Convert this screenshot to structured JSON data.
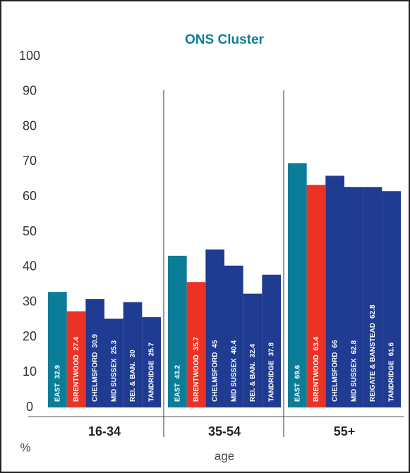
{
  "chart_data": {
    "type": "bar",
    "title": "ONS Cluster",
    "x_label": "age",
    "y_label": "%",
    "categories": [
      "16-34",
      "35-54",
      "55+"
    ],
    "series": [
      {
        "name": "EAST",
        "color": "#0b7d98",
        "labels": [
          "EAST",
          "EAST",
          "EAST"
        ],
        "values": [
          32.9,
          43.2,
          69.6
        ]
      },
      {
        "name": "BRENTWOOD",
        "color": "#ec3224",
        "labels": [
          "BRENTWOOD",
          "BRENTWOOD",
          "BRENTWOOD"
        ],
        "values": [
          27.4,
          35.7,
          63.4
        ]
      },
      {
        "name": "CHELMSFORD",
        "color": "#1f3b92",
        "labels": [
          "CHELMSFORD",
          "CHELMSFORD",
          "CHELMSFORD"
        ],
        "values": [
          30.9,
          45.0,
          66.0
        ]
      },
      {
        "name": "MID SUSSEX",
        "color": "#1f3b92",
        "labels": [
          "MID SUSSEX",
          "MID SUSSEX",
          "MID SUSSEX"
        ],
        "values": [
          25.3,
          40.4,
          62.8
        ]
      },
      {
        "name": "REI. & BAN.",
        "color": "#1f3b92",
        "labels": [
          "REI. & BAN.",
          "REI. & BAN.",
          "REIGATE & BANSTEAD"
        ],
        "values": [
          30.0,
          32.4,
          62.8
        ]
      },
      {
        "name": "TANDRIDGE",
        "color": "#1f3b92",
        "labels": [
          "TANDRIDGE",
          "TANDRIDGE",
          "TANDRIDGE"
        ],
        "values": [
          25.7,
          37.8,
          61.6
        ]
      }
    ],
    "ylim": [
      0,
      100
    ],
    "yticks": [
      0,
      10,
      20,
      30,
      40,
      50,
      60,
      70,
      80,
      90,
      100
    ]
  }
}
